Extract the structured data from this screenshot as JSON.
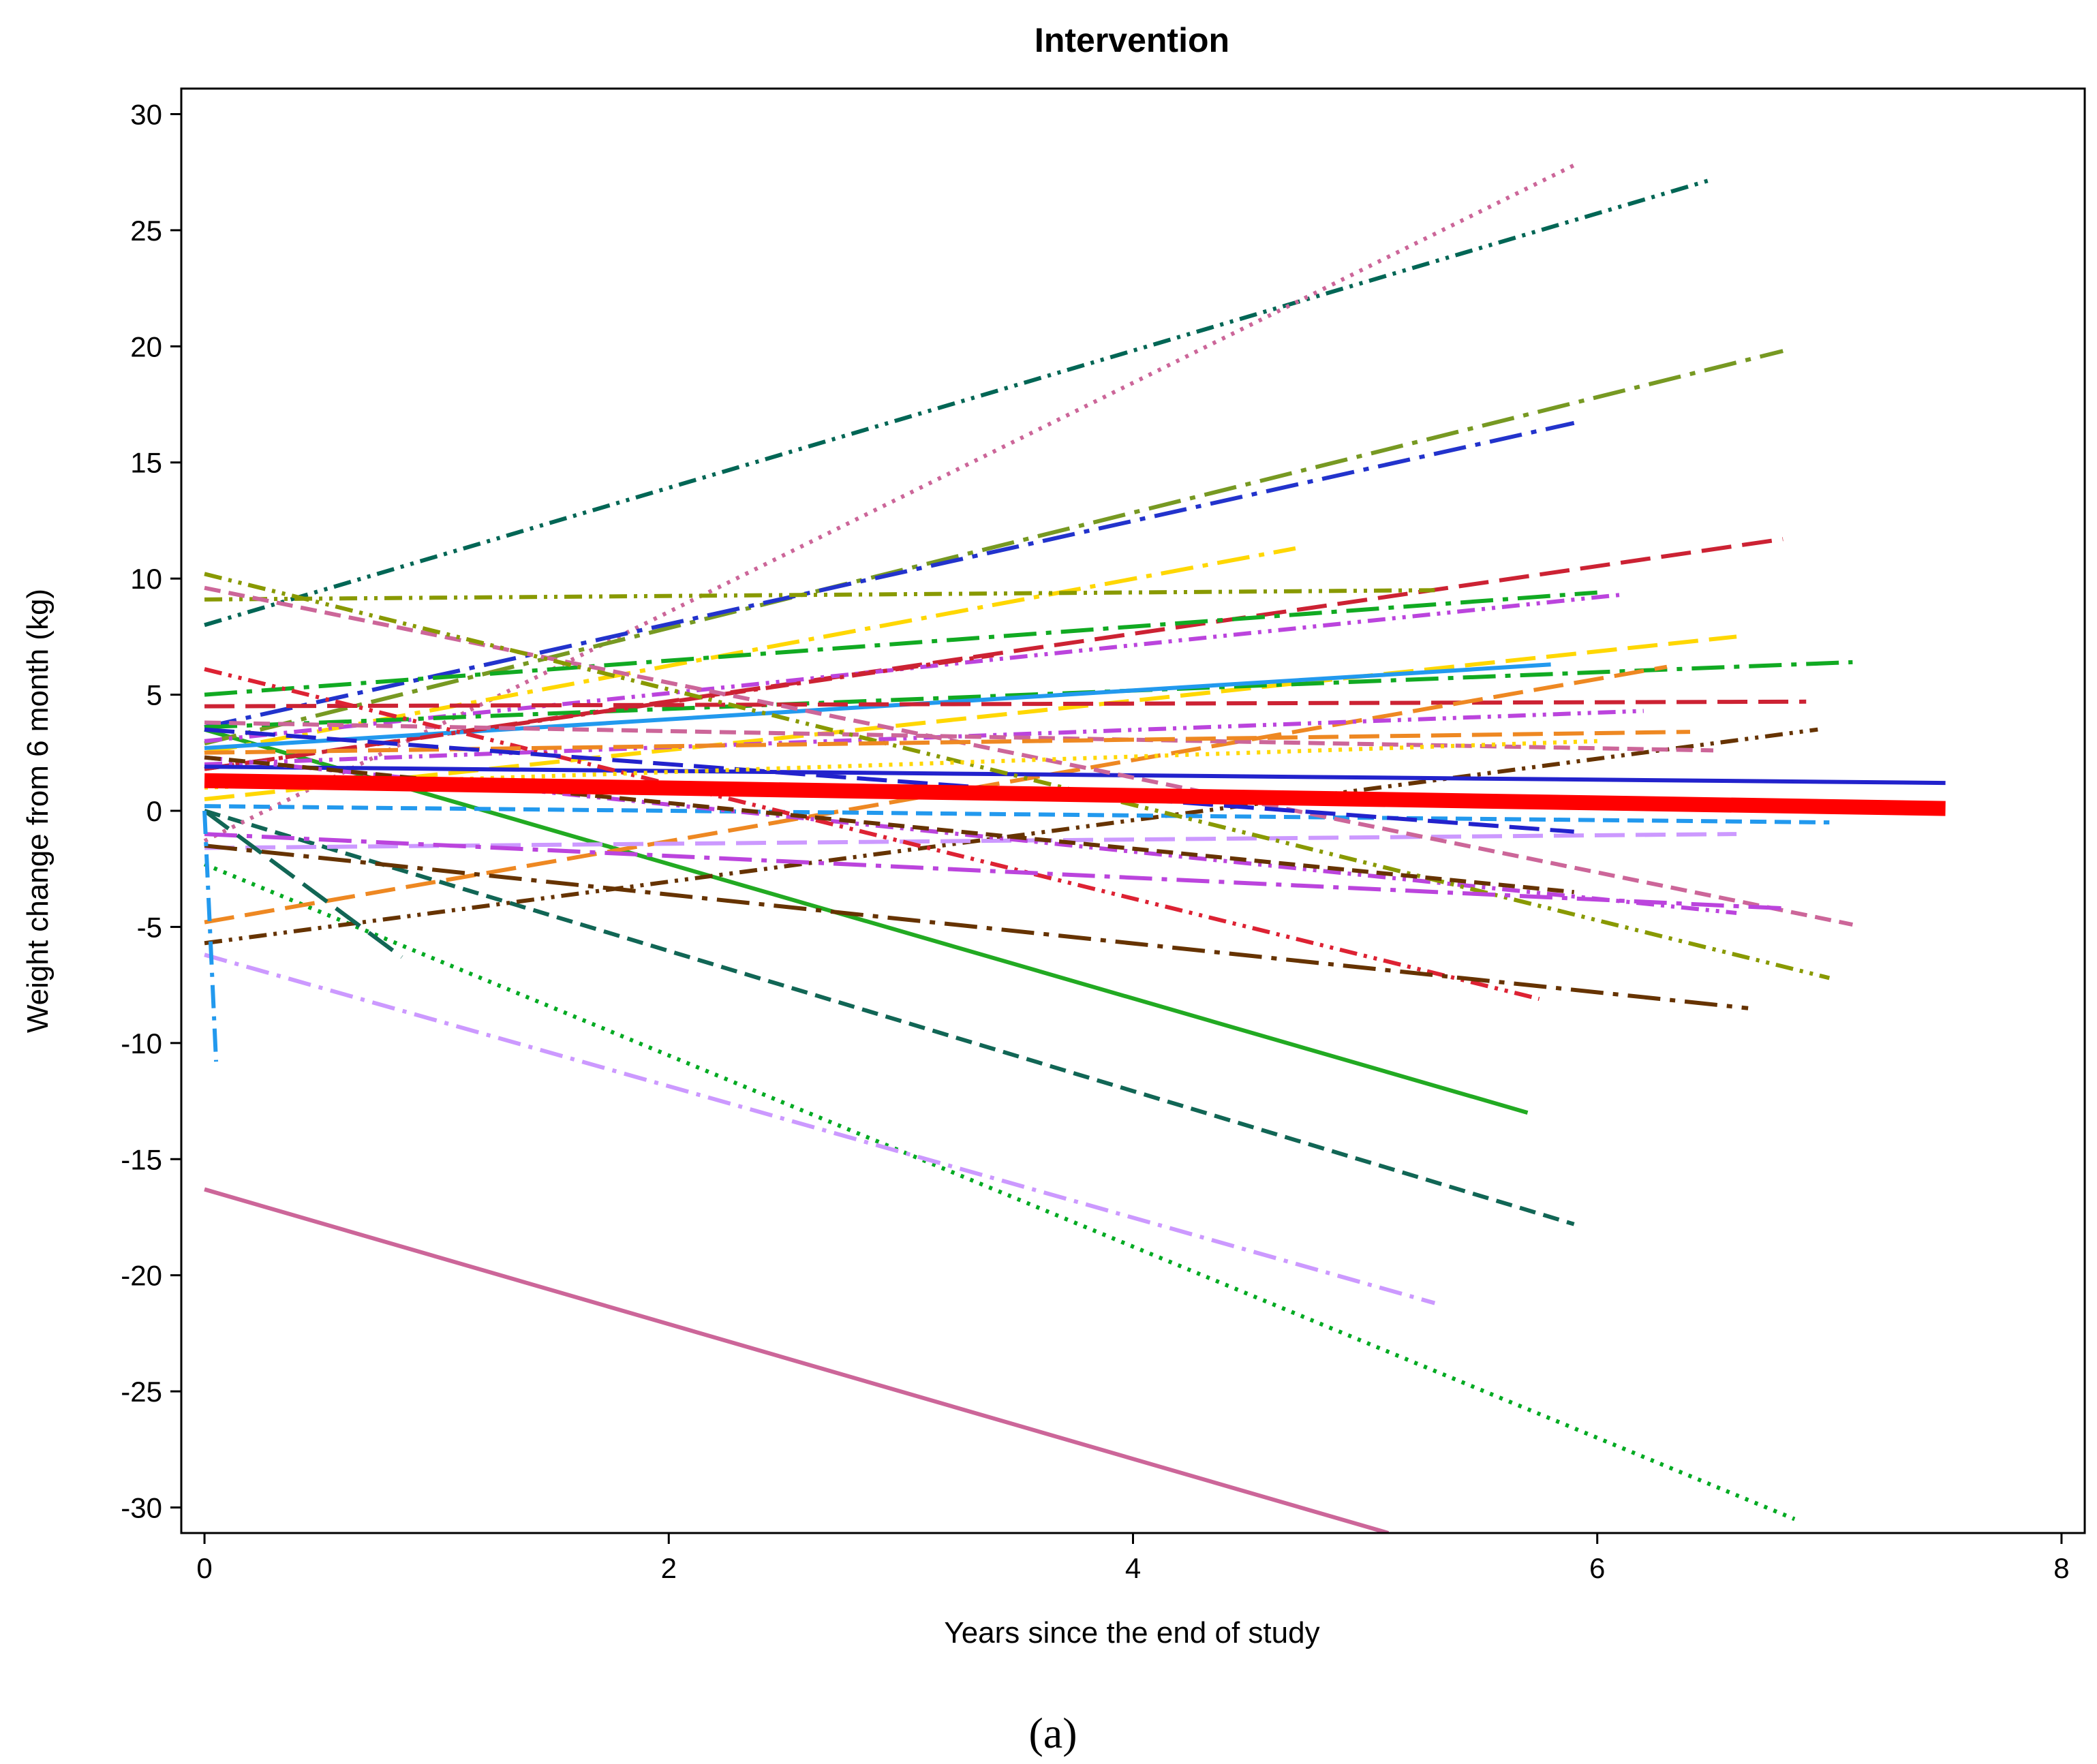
{
  "chart_data": {
    "type": "line",
    "title": "Intervention",
    "xlabel": "Years since the end of study",
    "ylabel": "Weight change from 6 month (kg)",
    "caption": "(a)",
    "xlim": [
      -0.1,
      8.1
    ],
    "ylim": [
      -31.1,
      31.1
    ],
    "x_ticks": [
      0,
      2,
      4,
      6,
      8
    ],
    "y_ticks": [
      30,
      25,
      20,
      15,
      10,
      5,
      0,
      -5,
      -10,
      -15,
      -20,
      -25,
      -30
    ],
    "grid": false,
    "legend": "none",
    "mean_line": {
      "name": "",
      "color": "#ff0000",
      "x": [
        0,
        7.5
      ],
      "y": [
        1.3,
        0.1
      ]
    },
    "series": [
      {
        "x": [
          0,
          5.1
        ],
        "y": [
          -16.3,
          -31.1
        ],
        "color": "#cc6699",
        "dash": "solid"
      },
      {
        "x": [
          0,
          6.85
        ],
        "y": [
          -2.3,
          -30.5
        ],
        "color": "#00aa22",
        "dash": "dot"
      },
      {
        "x": [
          0,
          5.3
        ],
        "y": [
          -6.2,
          -21.2
        ],
        "color": "#cc99ff",
        "dash": "dashdot"
      },
      {
        "x": [
          0,
          5.9
        ],
        "y": [
          0,
          -17.8
        ],
        "color": "#116655",
        "dash": "dash"
      },
      {
        "x": [
          0,
          5.7
        ],
        "y": [
          3.5,
          -13
        ],
        "color": "#22aa22",
        "dash": "solid"
      },
      {
        "x": [
          0,
          6.5
        ],
        "y": [
          8,
          27.2
        ],
        "color": "#006655",
        "dash": "dashdotdot"
      },
      {
        "x": [
          0,
          5.9
        ],
        "y": [
          -1.3,
          27.8
        ],
        "color": "#cc6699",
        "dash": "dot"
      },
      {
        "x": [
          0,
          6.8
        ],
        "y": [
          2.9,
          19.8
        ],
        "color": "#779922",
        "dash": "longdashdot"
      },
      {
        "x": [
          0,
          5.9
        ],
        "y": [
          3.6,
          16.7
        ],
        "color": "#2233cc",
        "dash": "longdashdot"
      },
      {
        "x": [
          0,
          6.8
        ],
        "y": [
          1.8,
          11.7
        ],
        "color": "#cc2233",
        "dash": "longdash"
      },
      {
        "x": [
          0,
          4.7
        ],
        "y": [
          2.5,
          11.3
        ],
        "color": "#ffd700",
        "dash": "longdashdot"
      },
      {
        "x": [
          0,
          5.3
        ],
        "y": [
          9.1,
          9.5
        ],
        "color": "#889900",
        "dash": "dashdotdot"
      },
      {
        "x": [
          0,
          6.0
        ],
        "y": [
          5.0,
          9.4
        ],
        "color": "#11aa22",
        "dash": "longdashdot"
      },
      {
        "x": [
          0,
          6.1
        ],
        "y": [
          3.0,
          9.3
        ],
        "color": "#bb44dd",
        "dash": "dashdotdot"
      },
      {
        "x": [
          0,
          6.6
        ],
        "y": [
          0.5,
          7.5
        ],
        "color": "#ffd700",
        "dash": "longdash"
      },
      {
        "x": [
          0,
          7.1
        ],
        "y": [
          3.6,
          6.4
        ],
        "color": "#11aa22",
        "dash": "longdashdot"
      },
      {
        "x": [
          0,
          5.8
        ],
        "y": [
          2.7,
          6.3
        ],
        "color": "#2299ee",
        "dash": "solid"
      },
      {
        "x": [
          0,
          3.4
        ],
        "y": [
          1.8,
          6.7
        ],
        "color": "#cc2233",
        "dash": "dashdot"
      },
      {
        "x": [
          0,
          6.9
        ],
        "y": [
          4.5,
          4.7
        ],
        "color": "#cc2233",
        "dash": "longdash"
      },
      {
        "x": [
          0,
          6.3
        ],
        "y": [
          -4.8,
          6.2
        ],
        "color": "#ee8822",
        "dash": "longdash"
      },
      {
        "x": [
          0,
          6.2
        ],
        "y": [
          2.0,
          4.3
        ],
        "color": "#bb44dd",
        "dash": "dashdotdot"
      },
      {
        "x": [
          0,
          6.95
        ],
        "y": [
          -5.7,
          3.5
        ],
        "color": "#663300",
        "dash": "dashdotdot"
      },
      {
        "x": [
          0,
          7.5
        ],
        "y": [
          1.9,
          1.2
        ],
        "color": "#2222cc",
        "dash": "solid"
      },
      {
        "x": [
          0,
          6.5
        ],
        "y": [
          3.8,
          2.6
        ],
        "color": "#cc6699",
        "dash": "dash"
      },
      {
        "x": [
          0,
          7.0
        ],
        "y": [
          0.2,
          -0.5
        ],
        "color": "#2299ee",
        "dash": "dash"
      },
      {
        "x": [
          0,
          6.6
        ],
        "y": [
          -1.6,
          -1.0
        ],
        "color": "#cc99ff",
        "dash": "longdash"
      },
      {
        "x": [
          0,
          6.6
        ],
        "y": [
          2.3,
          -4.4
        ],
        "color": "#bb44dd",
        "dash": "dashdotdot"
      },
      {
        "x": [
          0,
          7.1
        ],
        "y": [
          9.6,
          -4.9
        ],
        "color": "#cc6699",
        "dash": "dash"
      },
      {
        "x": [
          0,
          7.0
        ],
        "y": [
          10.2,
          -7.2
        ],
        "color": "#889900",
        "dash": "dashdotdot"
      },
      {
        "x": [
          0,
          5.75
        ],
        "y": [
          6.1,
          -8.1
        ],
        "color": "#dd2233",
        "dash": "dashdotdot"
      },
      {
        "x": [
          0,
          6.65
        ],
        "y": [
          -1.5,
          -8.5
        ],
        "color": "#663300",
        "dash": "longdashdot"
      },
      {
        "x": [
          0,
          5.9
        ],
        "y": [
          2.3,
          -3.5
        ],
        "color": "#663300",
        "dash": "dash"
      },
      {
        "x": [
          0,
          6.8
        ],
        "y": [
          -1.0,
          -4.2
        ],
        "color": "#bb44dd",
        "dash": "longdashdot"
      },
      {
        "x": [
          0,
          6.4
        ],
        "y": [
          2.5,
          3.4
        ],
        "color": "#ee8822",
        "dash": "longdash"
      },
      {
        "x": [
          0,
          5.9
        ],
        "y": [
          3.5,
          -0.9
        ],
        "color": "#2222cc",
        "dash": "longdash"
      },
      {
        "x": [
          0,
          6.0
        ],
        "y": [
          1.0,
          3.0
        ],
        "color": "#ffd700",
        "dash": "dot"
      },
      {
        "x": [
          0,
          0.85
        ],
        "y": [
          0,
          -6.3
        ],
        "color": "#116655",
        "dash": "longdash"
      },
      {
        "x": [
          0,
          0.05
        ],
        "y": [
          0,
          -10.8
        ],
        "color": "#2299ee",
        "dash": "dashdot"
      }
    ]
  }
}
